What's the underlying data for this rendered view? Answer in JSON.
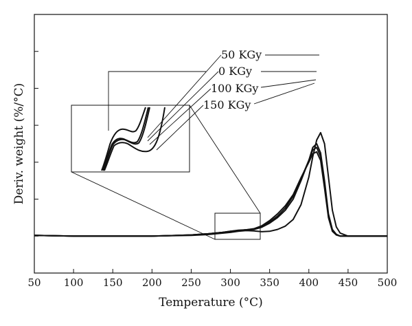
{
  "chart_data": {
    "type": "line",
    "xlabel": "Temperature (°C)",
    "ylabel": "Deriv. weight (%/°C)",
    "xlim": [
      50,
      500
    ],
    "ylim": [
      -0.1,
      0.6
    ],
    "x_ticks": [
      50,
      100,
      150,
      200,
      250,
      300,
      350,
      400,
      450,
      500
    ],
    "y_tick_labels_shown": false,
    "grid": false,
    "series": [
      {
        "name": "50 KGy",
        "x": [
          50,
          100,
          150,
          200,
          250,
          270,
          290,
          300,
          310,
          320,
          330,
          340,
          350,
          360,
          370,
          380,
          390,
          400,
          405,
          410,
          415,
          420,
          425,
          430,
          435,
          440,
          450,
          500
        ],
        "y": [
          0.002,
          0.0,
          0.0,
          0.0,
          0.002,
          0.004,
          0.008,
          0.01,
          0.013,
          0.015,
          0.014,
          0.012,
          0.013,
          0.018,
          0.027,
          0.045,
          0.085,
          0.16,
          0.215,
          0.26,
          0.28,
          0.25,
          0.16,
          0.07,
          0.025,
          0.008,
          0.0,
          0.0
        ]
      },
      {
        "name": "0 KGy",
        "x": [
          50,
          100,
          150,
          200,
          250,
          270,
          290,
          300,
          310,
          320,
          330,
          340,
          350,
          360,
          370,
          380,
          390,
          400,
          405,
          410,
          415,
          420,
          425,
          430,
          435,
          440,
          450,
          500
        ],
        "y": [
          0.002,
          0.0,
          0.0,
          0.0,
          0.003,
          0.006,
          0.01,
          0.013,
          0.016,
          0.017,
          0.018,
          0.024,
          0.035,
          0.05,
          0.07,
          0.1,
          0.15,
          0.205,
          0.24,
          0.25,
          0.225,
          0.15,
          0.06,
          0.018,
          0.005,
          0.0,
          0.0,
          0.0
        ]
      },
      {
        "name": "100 KGy",
        "x": [
          50,
          100,
          150,
          200,
          250,
          270,
          290,
          300,
          310,
          320,
          330,
          340,
          350,
          360,
          370,
          380,
          390,
          400,
          405,
          410,
          415,
          420,
          425,
          430,
          435,
          440,
          450,
          500
        ],
        "y": [
          0.002,
          0.0,
          0.0,
          0.0,
          0.003,
          0.006,
          0.01,
          0.013,
          0.015,
          0.017,
          0.019,
          0.026,
          0.038,
          0.054,
          0.076,
          0.108,
          0.155,
          0.205,
          0.233,
          0.24,
          0.215,
          0.14,
          0.055,
          0.015,
          0.004,
          0.0,
          0.0,
          0.0
        ]
      },
      {
        "name": "150 KGy",
        "x": [
          50,
          100,
          150,
          200,
          250,
          270,
          290,
          300,
          310,
          320,
          330,
          340,
          350,
          360,
          370,
          380,
          390,
          400,
          405,
          410,
          415,
          420,
          425,
          430,
          435,
          440,
          450,
          500
        ],
        "y": [
          0.002,
          0.0,
          0.0,
          0.0,
          0.003,
          0.006,
          0.01,
          0.012,
          0.015,
          0.017,
          0.02,
          0.028,
          0.042,
          0.06,
          0.082,
          0.112,
          0.158,
          0.2,
          0.223,
          0.228,
          0.205,
          0.13,
          0.05,
          0.013,
          0.003,
          0.0,
          0.0,
          0.0
        ]
      }
    ],
    "annotations": {
      "inset": "magnified view of region 280–340 °C",
      "legend_callouts": [
        "50 KGy",
        "0 KGy",
        "100 KGy",
        "150 KGy"
      ]
    }
  }
}
